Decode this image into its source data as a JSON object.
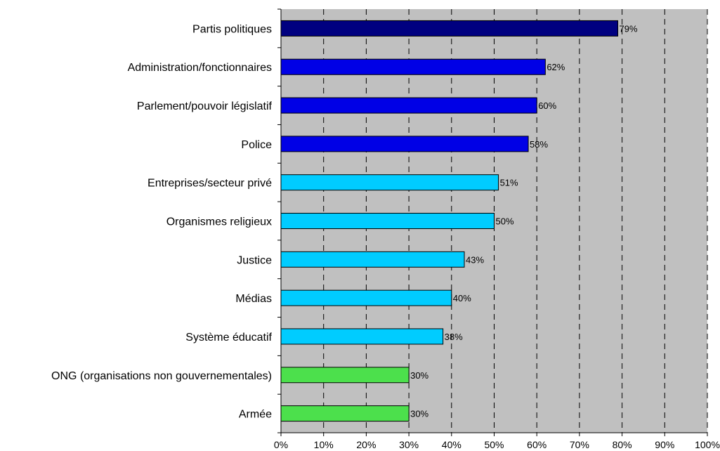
{
  "chart_data": {
    "type": "bar",
    "orientation": "horizontal",
    "categories": [
      "Partis politiques",
      "Administration/fonctionnaires",
      "Parlement/pouvoir législatif",
      "Police",
      "Entreprises/secteur privé",
      "Organismes religieux",
      "Justice",
      "Médias",
      "Système éducatif",
      "ONG (organisations non gouvernementales)",
      "Armée"
    ],
    "values": [
      79,
      62,
      60,
      58,
      51,
      50,
      43,
      40,
      38,
      30,
      30
    ],
    "value_labels": [
      "79%",
      "62%",
      "60%",
      "58%",
      "51%",
      "50%",
      "43%",
      "40%",
      "38%",
      "30%",
      "30%"
    ],
    "bar_colors": [
      "#000080",
      "#0000E6",
      "#0000E6",
      "#0000E6",
      "#00CCFF",
      "#00CCFF",
      "#00CCFF",
      "#00CCFF",
      "#00CCFF",
      "#4CE04C",
      "#4CE04C"
    ],
    "xlim": [
      0,
      100
    ],
    "xticks": [
      0,
      10,
      20,
      30,
      40,
      50,
      60,
      70,
      80,
      90,
      100
    ],
    "xtick_labels": [
      "0%",
      "10%",
      "20%",
      "30%",
      "40%",
      "50%",
      "60%",
      "70%",
      "80%",
      "90%",
      "100%"
    ],
    "grid": "vertical dashed",
    "plot_background": "#C0C0C0",
    "title": "",
    "xlabel": "",
    "ylabel": ""
  }
}
